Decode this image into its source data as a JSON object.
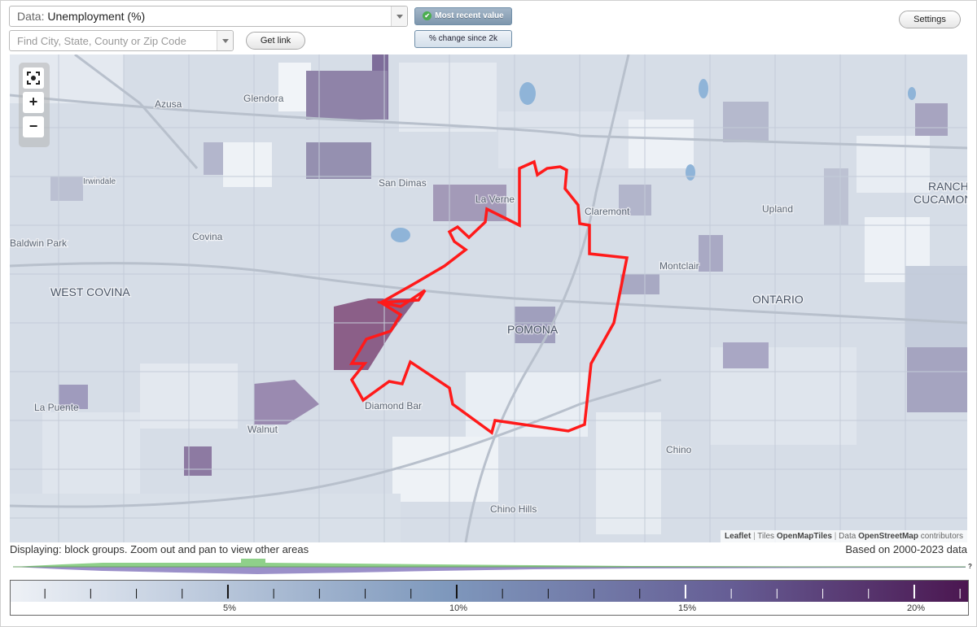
{
  "header": {
    "data_select_prefix": "Data:",
    "data_select_value": "Unemployment (%)",
    "search_placeholder": "Find City, State, County or Zip Code",
    "get_link_label": "Get link",
    "toggle_recent_label": "Most recent value",
    "toggle_change_label": "% change since 2k",
    "settings_label": "Settings"
  },
  "map": {
    "zoom_fit_icon": "fullscreen-icon",
    "zoom_in_label": "+",
    "zoom_out_label": "−",
    "place_labels": [
      {
        "name": "Glendora",
        "class": "city"
      },
      {
        "name": "Azusa",
        "class": "city"
      },
      {
        "name": "San Dimas",
        "class": "city"
      },
      {
        "name": "La Verne",
        "class": "city"
      },
      {
        "name": "Irwindale",
        "class": "small"
      },
      {
        "name": "Claremont",
        "class": "city"
      },
      {
        "name": "Upland",
        "class": "city"
      },
      {
        "name": "RANCHO",
        "class": "major"
      },
      {
        "name": "CUCAMONGA",
        "class": "major"
      },
      {
        "name": "Baldwin Park",
        "class": "city"
      },
      {
        "name": "Covina",
        "class": "city"
      },
      {
        "name": "WEST COVINA",
        "class": "major"
      },
      {
        "name": "Montclair",
        "class": "city"
      },
      {
        "name": "ONTARIO",
        "class": "major"
      },
      {
        "name": "POMONA",
        "class": "major"
      },
      {
        "name": "Diamond Bar",
        "class": "city"
      },
      {
        "name": "La Puente",
        "class": "city"
      },
      {
        "name": "Walnut",
        "class": "city"
      },
      {
        "name": "Chino",
        "class": "city"
      },
      {
        "name": "Chino Hills",
        "class": "city"
      }
    ],
    "attribution": {
      "leaflet": "Leaflet",
      "tiles_prefix": "Tiles",
      "tiles": "OpenMapTiles",
      "data_prefix": "Data",
      "data": "OpenStreetMap",
      "contributors": "contributors"
    }
  },
  "status_text": "Displaying: block groups. Zoom out and pan to view other areas",
  "based_text": "Based on 2000-2023 data",
  "legend": {
    "ticks": [
      "5%",
      "10%",
      "15%",
      "20%"
    ],
    "question_mark": "?",
    "colors": {
      "low": "#eef1f6",
      "mid": "#7f99bd",
      "high": "#4b1650"
    }
  },
  "colors": {
    "boundary": "#ff1a1a",
    "histogram_green": "#8fd08a",
    "histogram_purple": "#9b90c9"
  }
}
